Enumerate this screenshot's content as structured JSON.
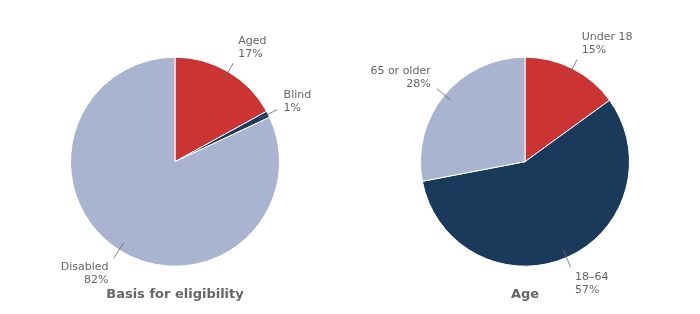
{
  "chart_data": [
    {
      "type": "pie",
      "title": "Basis for eligibility",
      "categories": [
        "Aged",
        "Blind",
        "Disabled"
      ],
      "values": [
        17,
        1,
        82
      ],
      "value_labels": [
        "17%",
        "1%",
        "82%"
      ],
      "colors": [
        "#cc3333",
        "#1a3a5c",
        "#a8b4d0"
      ],
      "data_labels": true,
      "legend": false
    },
    {
      "type": "pie",
      "title": "Age",
      "categories": [
        "Under 18",
        "18–64",
        "65 or older"
      ],
      "values": [
        15,
        57,
        28
      ],
      "value_labels": [
        "15%",
        "57%",
        "28%"
      ],
      "colors": [
        "#cc3333",
        "#1a3a5c",
        "#a8b4d0"
      ],
      "data_labels": true,
      "legend": false
    }
  ]
}
